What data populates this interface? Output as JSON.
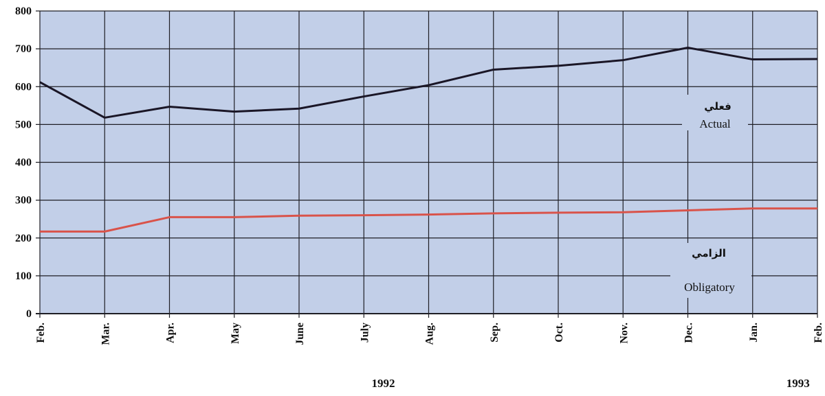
{
  "chart_data": {
    "type": "line",
    "categories": [
      "Feb.",
      "Mar.",
      "Apr.",
      "May",
      "June",
      "July",
      "Aug.",
      "Sep.",
      "Oct.",
      "Nov.",
      "Dec.",
      "Jan.",
      "Feb."
    ],
    "years": [
      {
        "label": "1992",
        "at_index": 5.3
      },
      {
        "label": "1993",
        "at_index": 11.7
      }
    ],
    "y_ticks": [
      0,
      100,
      200,
      300,
      400,
      500,
      600,
      700,
      800
    ],
    "ylim": [
      0,
      800
    ],
    "grid": true,
    "series": [
      {
        "name": "Actual",
        "name_ar": "فعلي",
        "color": "#1a1626",
        "values": [
          612,
          518,
          547,
          534,
          542,
          574,
          604,
          645,
          655,
          670,
          703,
          672,
          673
        ]
      },
      {
        "name": "Obligatory",
        "name_ar": "الزامي",
        "color": "#d9534a",
        "values": [
          217,
          217,
          255,
          255,
          259,
          260,
          262,
          265,
          267,
          268,
          273,
          278,
          278
        ]
      }
    ],
    "background_color": "#c2cfe8",
    "grid_color": "#1e1e24"
  }
}
